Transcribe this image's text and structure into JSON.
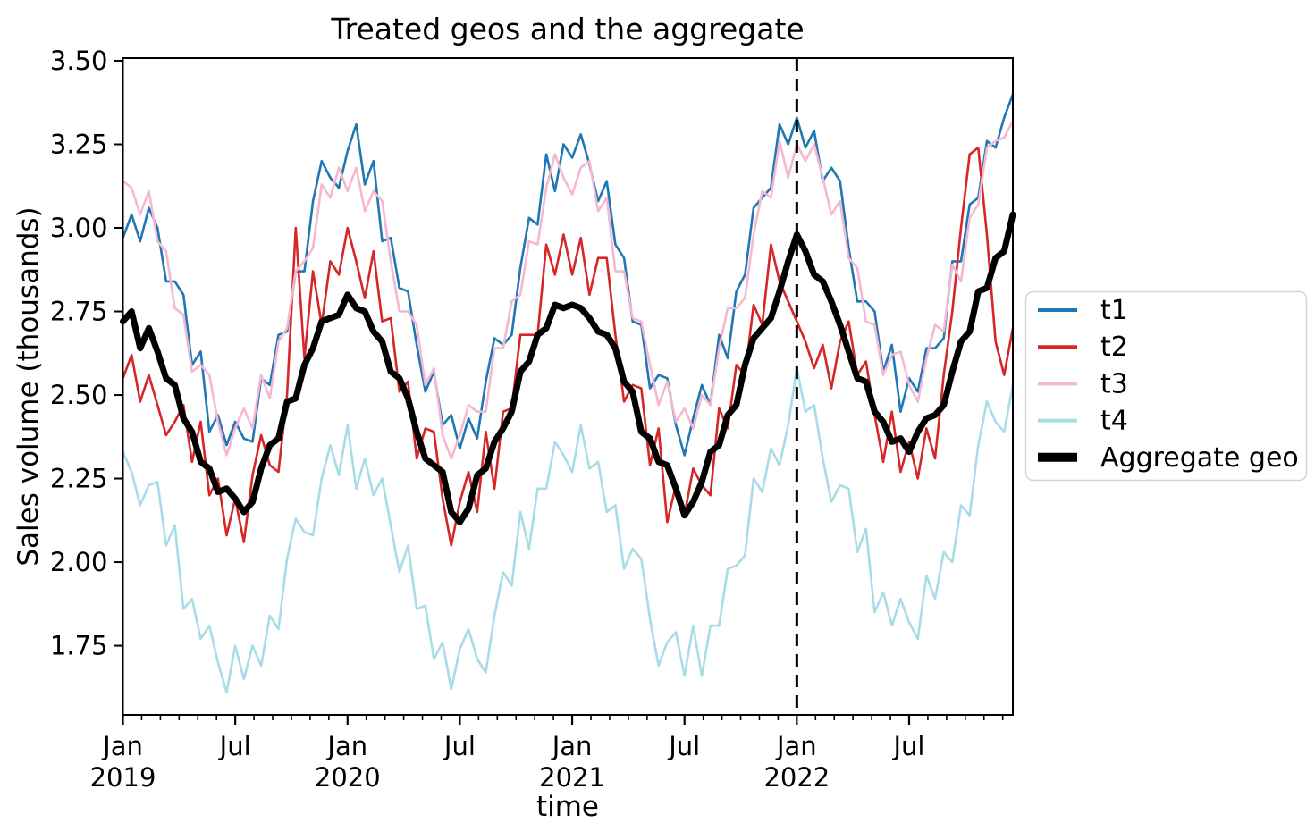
{
  "chart_data": {
    "type": "line",
    "title": "Treated geos and the aggregate",
    "xlabel": "time",
    "ylabel": "Sales volume (thousands)",
    "ylim": [
      1.543,
      3.508
    ],
    "y_ticks": [
      "1.75",
      "2.00",
      "2.25",
      "2.50",
      "2.75",
      "3.00",
      "3.25",
      "3.50"
    ],
    "x_start": "2019-01",
    "frequency": "biweekly",
    "points_per_year": 26,
    "x_total_months": 47.54,
    "x_ticks": [
      {
        "month": 0,
        "label": "Jan",
        "year": "2019"
      },
      {
        "month": 6,
        "label": "Jul"
      },
      {
        "month": 12,
        "label": "Jan",
        "year": "2020"
      },
      {
        "month": 18,
        "label": "Jul"
      },
      {
        "month": 24,
        "label": "Jan",
        "year": "2021"
      },
      {
        "month": 30,
        "label": "Jul"
      },
      {
        "month": 36,
        "label": "Jan",
        "year": "2022"
      },
      {
        "month": 42,
        "label": "Jul"
      }
    ],
    "x_minor_ticks": "monthly",
    "grid": false,
    "legend": {
      "position": "center right outside",
      "entries": [
        "t1",
        "t2",
        "t3",
        "t4",
        "Aggregate geo"
      ]
    },
    "treatment_marker": {
      "month": 36,
      "date": "2022-01",
      "style": "dashed",
      "color": "#000000"
    },
    "series": [
      {
        "name": "t1",
        "color": "#1f77b4",
        "width": 2.6,
        "values": [
          2.97,
          3.04,
          2.96,
          3.06,
          3.0,
          2.84,
          2.84,
          2.8,
          2.59,
          2.63,
          2.39,
          2.44,
          2.35,
          2.42,
          2.37,
          2.36,
          2.55,
          2.53,
          2.68,
          2.69,
          2.87,
          2.87,
          3.08,
          3.2,
          3.15,
          3.12,
          3.23,
          3.31,
          3.13,
          3.2,
          2.96,
          2.97,
          2.82,
          2.81,
          2.65,
          2.51,
          2.57,
          2.41,
          2.44,
          2.34,
          2.43,
          2.37,
          2.54,
          2.67,
          2.65,
          2.68,
          2.88,
          3.03,
          3.01,
          3.22,
          3.11,
          3.25,
          3.21,
          3.28,
          3.19,
          3.08,
          3.14,
          2.95,
          2.91,
          2.72,
          2.71,
          2.52,
          2.56,
          2.55,
          2.41,
          2.32,
          2.43,
          2.53,
          2.47,
          2.68,
          2.61,
          2.81,
          2.86,
          3.06,
          3.09,
          3.12,
          3.31,
          3.25,
          3.33,
          3.24,
          3.29,
          3.14,
          3.18,
          3.14,
          2.94,
          2.78,
          2.78,
          2.75,
          2.57,
          2.65,
          2.45,
          2.55,
          2.51,
          2.64,
          2.64,
          2.67,
          2.9,
          2.9,
          3.07,
          3.09,
          3.26,
          3.24,
          3.33,
          3.4
        ]
      },
      {
        "name": "t2",
        "color": "#d62728",
        "width": 2.6,
        "values": [
          2.55,
          2.62,
          2.48,
          2.56,
          2.47,
          2.38,
          2.42,
          2.47,
          2.3,
          2.42,
          2.2,
          2.25,
          2.08,
          2.19,
          2.06,
          2.26,
          2.38,
          2.29,
          2.27,
          2.5,
          3.0,
          2.61,
          2.87,
          2.71,
          2.9,
          2.86,
          3.0,
          2.9,
          2.79,
          2.93,
          2.72,
          2.73,
          2.51,
          2.54,
          2.31,
          2.4,
          2.39,
          2.19,
          2.05,
          2.18,
          2.27,
          2.15,
          2.39,
          2.22,
          2.45,
          2.46,
          2.68,
          2.68,
          2.68,
          2.95,
          2.86,
          2.98,
          2.86,
          2.97,
          2.8,
          2.91,
          2.91,
          2.68,
          2.48,
          2.53,
          2.52,
          2.29,
          2.4,
          2.12,
          2.23,
          2.14,
          2.28,
          2.23,
          2.2,
          2.46,
          2.4,
          2.59,
          2.56,
          2.77,
          2.71,
          2.95,
          2.84,
          2.78,
          2.72,
          2.66,
          2.58,
          2.65,
          2.52,
          2.66,
          2.72,
          2.56,
          2.6,
          2.44,
          2.3,
          2.45,
          2.27,
          2.36,
          2.25,
          2.4,
          2.31,
          2.56,
          2.75,
          3.0,
          3.22,
          3.24,
          2.98,
          2.66,
          2.56,
          2.7
        ]
      },
      {
        "name": "t3",
        "color": "#f5b8d0",
        "width": 2.6,
        "values": [
          3.14,
          3.12,
          3.04,
          3.11,
          2.96,
          2.93,
          2.76,
          2.74,
          2.57,
          2.59,
          2.56,
          2.42,
          2.32,
          2.4,
          2.46,
          2.4,
          2.56,
          2.49,
          2.66,
          2.7,
          2.87,
          2.9,
          2.94,
          3.13,
          3.09,
          3.18,
          3.11,
          3.18,
          3.05,
          3.11,
          3.08,
          2.9,
          2.75,
          2.75,
          2.71,
          2.53,
          2.58,
          2.38,
          2.31,
          2.38,
          2.47,
          2.45,
          2.45,
          2.64,
          2.64,
          2.78,
          2.8,
          2.96,
          2.95,
          3.12,
          3.22,
          3.15,
          3.1,
          3.18,
          3.2,
          3.05,
          3.09,
          2.87,
          2.87,
          2.73,
          2.72,
          2.59,
          2.47,
          2.54,
          2.42,
          2.46,
          2.4,
          2.5,
          2.47,
          2.64,
          2.76,
          2.76,
          2.79,
          2.98,
          3.11,
          3.09,
          3.26,
          3.15,
          3.25,
          3.2,
          3.25,
          3.15,
          3.04,
          3.08,
          2.91,
          2.88,
          2.72,
          2.71,
          2.56,
          2.62,
          2.63,
          2.53,
          2.48,
          2.61,
          2.71,
          2.69,
          2.89,
          2.84,
          3.03,
          3.07,
          3.24,
          3.26,
          3.27,
          3.32
        ]
      },
      {
        "name": "t4",
        "color": "#a8dce8",
        "width": 2.6,
        "values": [
          2.33,
          2.27,
          2.17,
          2.23,
          2.24,
          2.05,
          2.11,
          1.86,
          1.89,
          1.77,
          1.81,
          1.7,
          1.61,
          1.75,
          1.65,
          1.75,
          1.69,
          1.84,
          1.8,
          2.01,
          2.13,
          2.09,
          2.08,
          2.25,
          2.35,
          2.26,
          2.41,
          2.22,
          2.31,
          2.2,
          2.25,
          2.11,
          1.97,
          2.05,
          1.86,
          1.87,
          1.71,
          1.76,
          1.62,
          1.74,
          1.8,
          1.71,
          1.67,
          1.84,
          1.97,
          1.93,
          2.15,
          2.04,
          2.22,
          2.22,
          2.36,
          2.32,
          2.27,
          2.41,
          2.28,
          2.3,
          2.15,
          2.17,
          1.98,
          2.04,
          2.01,
          1.83,
          1.69,
          1.76,
          1.79,
          1.66,
          1.81,
          1.66,
          1.81,
          1.81,
          1.98,
          1.99,
          2.02,
          2.25,
          2.21,
          2.34,
          2.29,
          2.41,
          2.58,
          2.45,
          2.47,
          2.31,
          2.18,
          2.23,
          2.22,
          2.03,
          2.1,
          1.85,
          1.91,
          1.81,
          1.89,
          1.82,
          1.77,
          1.96,
          1.89,
          2.03,
          2.0,
          2.17,
          2.14,
          2.35,
          2.48,
          2.42,
          2.39,
          2.53
        ]
      },
      {
        "name": "Aggregate geo",
        "color": "#000000",
        "width": 7,
        "values": [
          2.72,
          2.75,
          2.64,
          2.7,
          2.63,
          2.55,
          2.53,
          2.43,
          2.39,
          2.3,
          2.28,
          2.21,
          2.22,
          2.19,
          2.15,
          2.18,
          2.28,
          2.35,
          2.37,
          2.48,
          2.49,
          2.59,
          2.64,
          2.72,
          2.73,
          2.74,
          2.8,
          2.76,
          2.75,
          2.69,
          2.66,
          2.57,
          2.55,
          2.49,
          2.39,
          2.31,
          2.29,
          2.27,
          2.15,
          2.12,
          2.16,
          2.26,
          2.28,
          2.36,
          2.4,
          2.45,
          2.57,
          2.6,
          2.68,
          2.7,
          2.77,
          2.76,
          2.77,
          2.76,
          2.73,
          2.69,
          2.68,
          2.64,
          2.54,
          2.51,
          2.39,
          2.37,
          2.3,
          2.29,
          2.22,
          2.14,
          2.18,
          2.24,
          2.33,
          2.35,
          2.44,
          2.47,
          2.59,
          2.67,
          2.7,
          2.73,
          2.81,
          2.9,
          2.98,
          2.93,
          2.86,
          2.84,
          2.78,
          2.71,
          2.63,
          2.55,
          2.54,
          2.45,
          2.42,
          2.36,
          2.37,
          2.33,
          2.39,
          2.43,
          2.44,
          2.47,
          2.57,
          2.66,
          2.69,
          2.81,
          2.82,
          2.91,
          2.93,
          3.04
        ]
      }
    ]
  }
}
